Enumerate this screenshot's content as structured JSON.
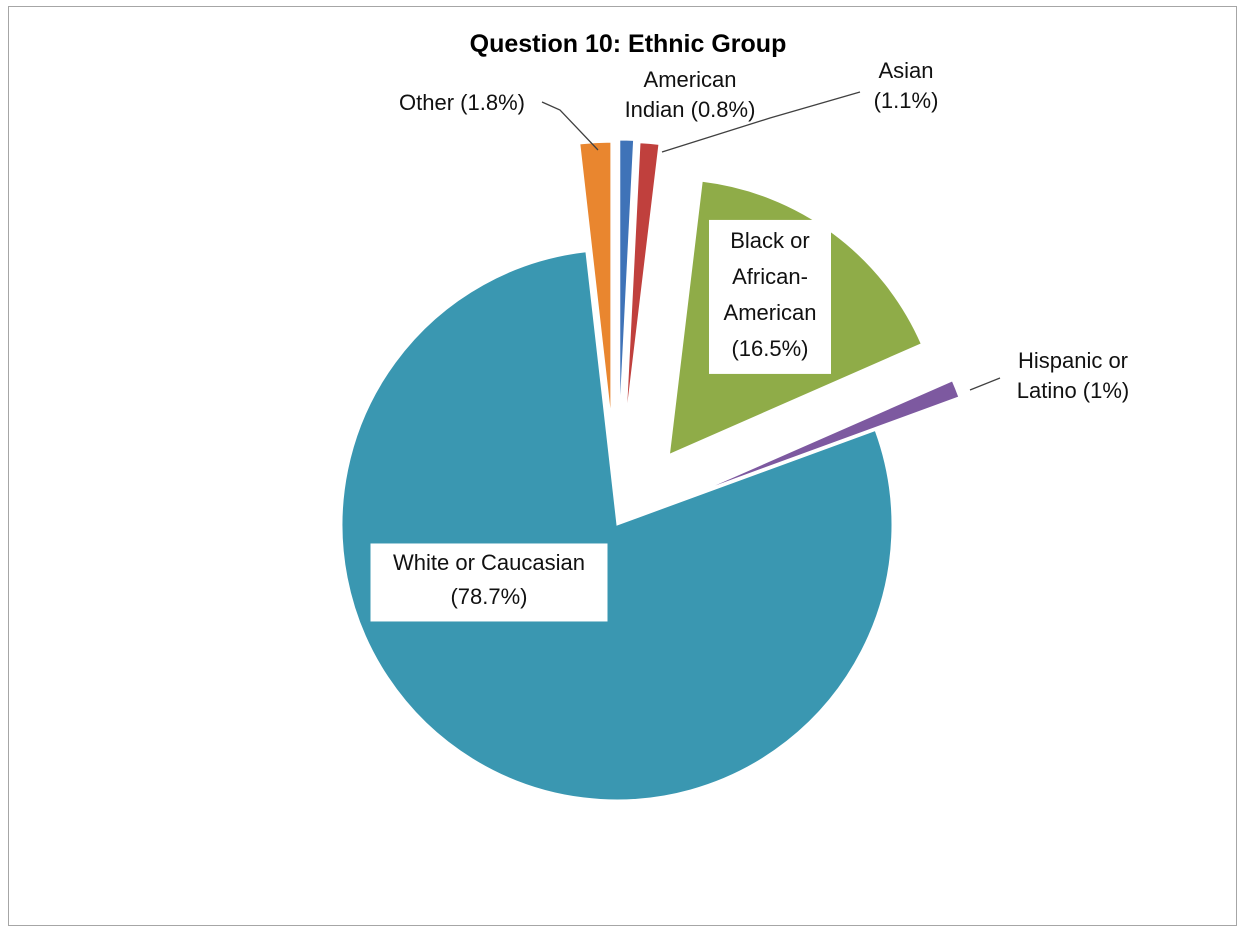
{
  "chart_data": {
    "type": "pie",
    "title": "Question 10:  Ethnic Group",
    "legend": "none",
    "slices": [
      {
        "label_lines": [
          "American",
          "Indian (0.8%)"
        ],
        "value": 0.8,
        "color": "#3f73b8"
      },
      {
        "label_lines": [
          "Asian",
          "(1.1%)"
        ],
        "value": 1.1,
        "color": "#c0403d"
      },
      {
        "label_lines": [
          "Black or",
          "African-",
          "American",
          "(16.5%)"
        ],
        "value": 16.5,
        "color": "#8fac48"
      },
      {
        "label_lines": [
          "Hispanic or",
          "Latino (1%)"
        ],
        "value": 1.0,
        "color": "#7d59a0"
      },
      {
        "label_lines": [
          "White or Caucasian",
          "(78.7%)"
        ],
        "value": 78.7,
        "color": "#3a97b1"
      },
      {
        "label_lines": [
          "Other (1.8%)"
        ],
        "value": 1.8,
        "color": "#e9862f"
      }
    ]
  }
}
